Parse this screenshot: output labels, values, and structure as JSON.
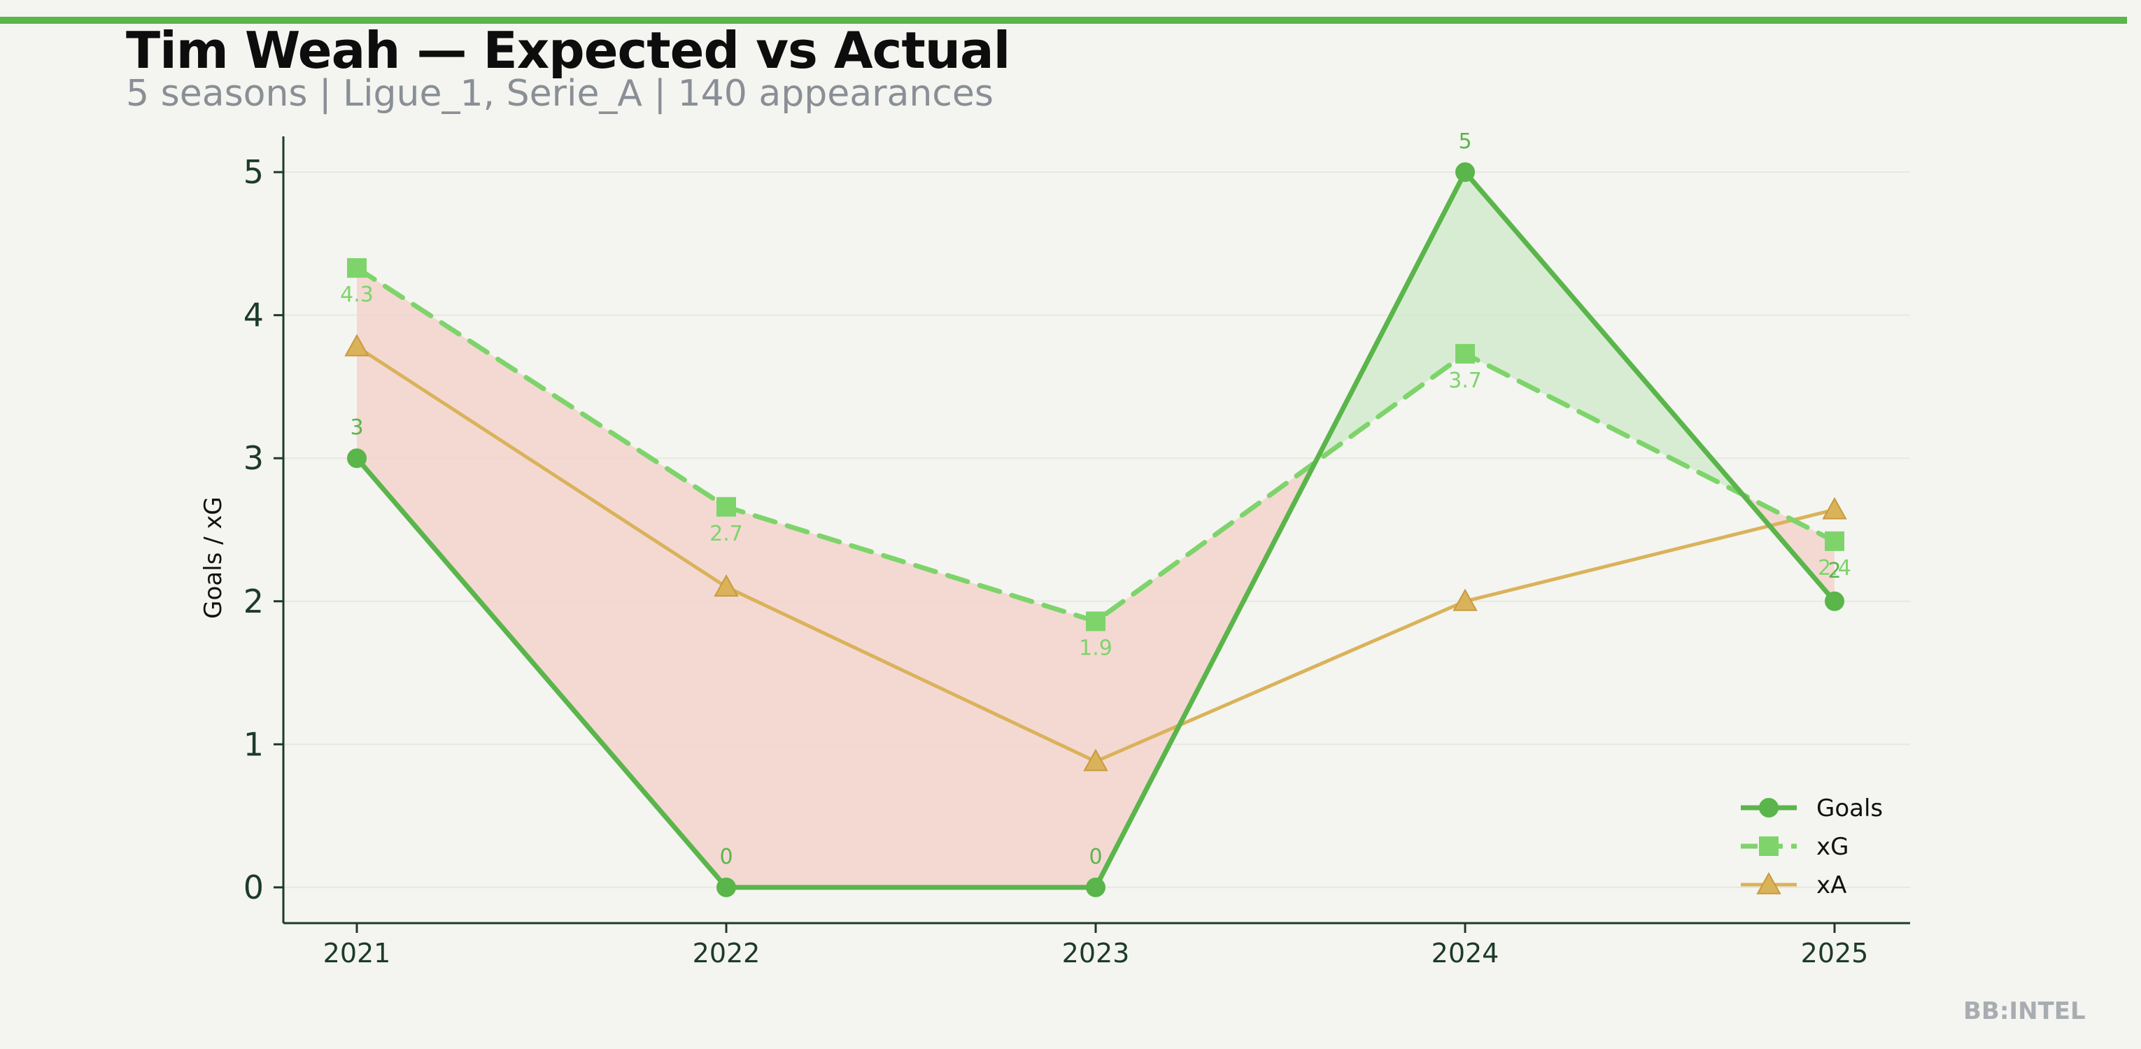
{
  "header": {
    "title": "Tim Weah — Expected vs Actual",
    "subtitle": "5 seasons | Ligue_1, Serie_A | 140 appearances"
  },
  "watermark": "BB:INTEL",
  "colors": {
    "goals": "#5ab54b",
    "xg": "#7ed46b",
    "xa": "#dab25a",
    "underperform_fill": "#f4cfc9",
    "overperform_fill": "#cfe8c9",
    "axis": "#1d3a2a",
    "top_bar": "#5ab54b"
  },
  "chart_data": {
    "type": "line",
    "title": "Tim Weah — Expected vs Actual",
    "subtitle": "5 seasons | Ligue_1, Serie_A | 140 appearances",
    "xlabel": "",
    "ylabel": "Goals / xG",
    "categories": [
      "2021",
      "2022",
      "2023",
      "2024",
      "2025"
    ],
    "ylim": [
      -0.25,
      5.25
    ],
    "yticks": [
      0,
      1,
      2,
      3,
      4,
      5
    ],
    "grid": true,
    "legend_position": "bottom-right",
    "series": [
      {
        "name": "Goals",
        "values": [
          3,
          0,
          0,
          5,
          2
        ],
        "labels": [
          "3",
          "0",
          "0",
          "5",
          "2"
        ],
        "marker": "circle",
        "line": "solid"
      },
      {
        "name": "xG",
        "values": [
          4.33,
          2.66,
          1.86,
          3.73,
          2.42
        ],
        "labels": [
          "4.3",
          "2.7",
          "1.9",
          "3.7",
          "2.4"
        ],
        "marker": "square",
        "line": "dashed"
      },
      {
        "name": "xA",
        "values": [
          3.78,
          2.1,
          0.88,
          2.0,
          2.64
        ],
        "marker": "triangle",
        "line": "solid"
      }
    ]
  }
}
